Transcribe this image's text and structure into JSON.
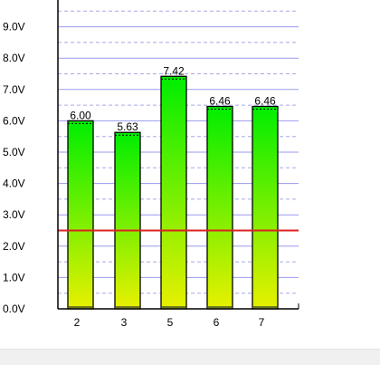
{
  "chart_data": {
    "type": "bar",
    "categories": [
      "2",
      "3",
      "5",
      "6",
      "7"
    ],
    "values": [
      6.0,
      5.63,
      7.42,
      6.46,
      6.46
    ],
    "value_labels": [
      "6.00",
      "5.63",
      "7.42",
      "6.46",
      "6.46"
    ],
    "y_ticks": [
      "0.0V",
      "1.0V",
      "2.0V",
      "3.0V",
      "4.0V",
      "5.0V",
      "6.0V",
      "7.0V",
      "8.0V",
      "9.0V"
    ],
    "ylim": [
      0,
      10
    ],
    "grid": true,
    "threshold": 2.5,
    "colors": {
      "bar_top": "#00ee00",
      "bar_bottom": "#e8f000",
      "threshold_line": "#dd2222",
      "grid_solid": "#9a9aee",
      "grid_dashed": "#a8a8e8",
      "axis": "#000000"
    }
  }
}
